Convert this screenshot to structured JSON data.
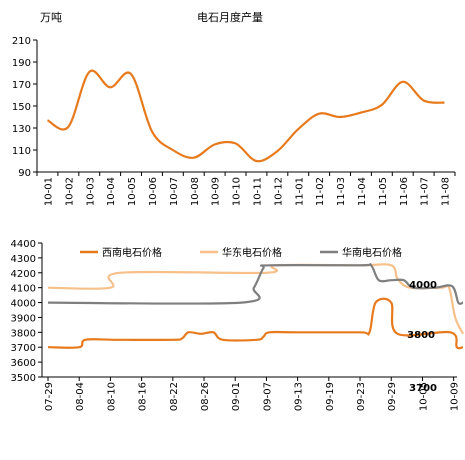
{
  "chart_data": [
    {
      "type": "line",
      "title": "电石月度产量",
      "unit_label": "万吨",
      "ylim": [
        90,
        210
      ],
      "yticks": [
        90,
        110,
        130,
        150,
        170,
        190,
        210
      ],
      "categories": [
        "10-01",
        "10-02",
        "10-03",
        "10-04",
        "10-05",
        "10-06",
        "10-07",
        "10-08",
        "10-09",
        "10-10",
        "10-11",
        "10-12",
        "11-01",
        "11-02",
        "11-03",
        "11-04",
        "11-05",
        "11-06",
        "11-07",
        "11-08"
      ],
      "series": [
        {
          "values": [
            137,
            131,
            181,
            167,
            179,
            127,
            110,
            103,
            115,
            116,
            100,
            109,
            129,
            143,
            140,
            144,
            151,
            172,
            155,
            153
          ]
        }
      ],
      "grid": false,
      "color": "#e87a1e"
    },
    {
      "type": "line",
      "ylim": [
        3500,
        4400
      ],
      "yticks": [
        3500,
        3600,
        3700,
        3800,
        3900,
        4000,
        4100,
        4200,
        4300,
        4400
      ],
      "categories": [
        "07-29",
        "08-04",
        "08-10",
        "08-16",
        "08-22",
        "08-26",
        "09-01",
        "09-07",
        "09-13",
        "09-19",
        "09-23",
        "09-29",
        "10-05",
        "10-09"
      ],
      "legend_position": "top",
      "annotations": [
        "4000",
        "3800",
        "3700"
      ],
      "series": [
        {
          "name": "西南电石价格",
          "color": "#e87a1e",
          "points": [
            [
              0,
              3700
            ],
            [
              1.0,
              3700
            ],
            [
              1.2,
              3750
            ],
            [
              2.2,
              3750
            ],
            [
              4.0,
              3750
            ],
            [
              4.3,
              3760
            ],
            [
              4.5,
              3800
            ],
            [
              4.9,
              3790
            ],
            [
              5.3,
              3800
            ],
            [
              5.6,
              3750
            ],
            [
              6.7,
              3750
            ],
            [
              6.9,
              3770
            ],
            [
              7.1,
              3800
            ],
            [
              8.0,
              3800
            ],
            [
              10.0,
              3800
            ],
            [
              10.3,
              3800
            ],
            [
              10.5,
              4000
            ],
            [
              11.0,
              4000
            ],
            [
              11.2,
              3790
            ],
            [
              12.9,
              3800
            ],
            [
              13.1,
              3700
            ],
            [
              13.3,
              3700
            ]
          ]
        },
        {
          "name": "华东电石价格",
          "color": "#f7c08a",
          "points": [
            [
              0,
              4100
            ],
            [
              2.0,
              4100
            ],
            [
              2.3,
              4200
            ],
            [
              7.0,
              4200
            ],
            [
              7.3,
              4250
            ],
            [
              10.0,
              4250
            ],
            [
              11.0,
              4250
            ],
            [
              11.2,
              4160
            ],
            [
              11.6,
              4100
            ],
            [
              12.6,
              4100
            ],
            [
              12.85,
              4100
            ],
            [
              13.05,
              3900
            ],
            [
              13.3,
              3790
            ]
          ]
        },
        {
          "name": "华南电石价格",
          "color": "#7f7f7f",
          "points": [
            [
              0,
              4000
            ],
            [
              6.2,
              4000
            ],
            [
              6.6,
              4100
            ],
            [
              6.9,
              4230
            ],
            [
              7.1,
              4250
            ],
            [
              10.0,
              4250
            ],
            [
              10.35,
              4250
            ],
            [
              10.6,
              4150
            ],
            [
              11.0,
              4150
            ],
            [
              11.4,
              4150
            ],
            [
              11.7,
              4100
            ],
            [
              12.4,
              4100
            ],
            [
              12.95,
              4110
            ],
            [
              13.15,
              4000
            ],
            [
              13.3,
              4000
            ]
          ]
        }
      ]
    }
  ]
}
